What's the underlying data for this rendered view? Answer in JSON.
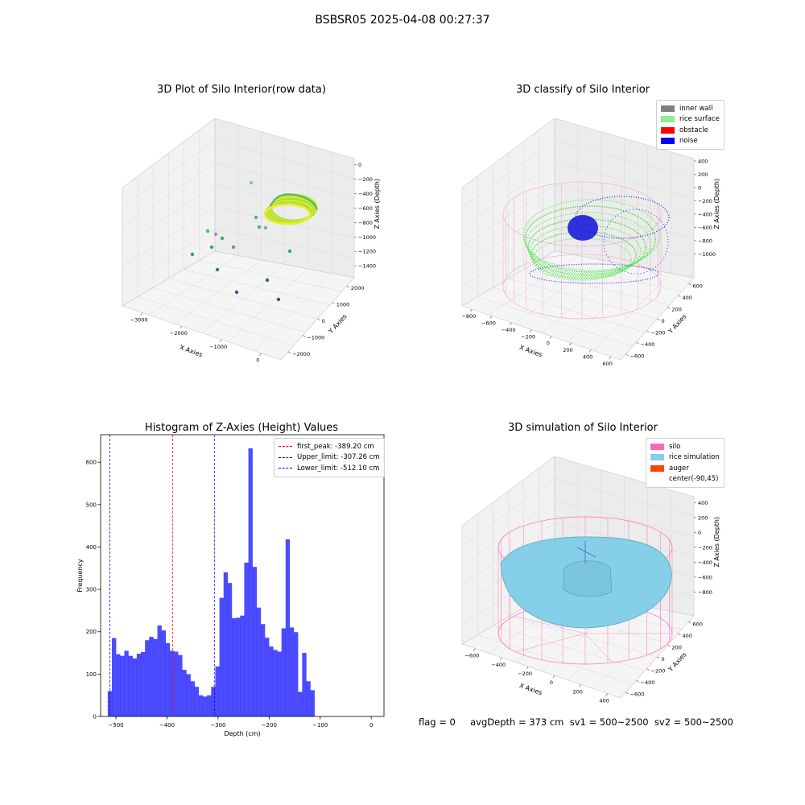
{
  "figure": {
    "suptitle": "BSBSR05 2025-04-08 00:27:37",
    "status_line": "flag = 0     avgDepth = 373 cm  sv1 = 500~2500  sv2 = 500~2500"
  },
  "panels": {
    "raw": {
      "title": "3D Plot of Silo Interior(row data)",
      "xlabel": "X Axies",
      "ylabel": "Y Axies",
      "zlabel": "Z Axies (Depth)",
      "xticks": [
        "−3000",
        "−2000",
        "−1000",
        "0"
      ],
      "yticks": [
        "−2000",
        "−1000",
        "0",
        "1000",
        "2000"
      ],
      "zticks": [
        "0",
        "−200",
        "−400",
        "−600",
        "−800",
        "−1000",
        "−1200",
        "−1400"
      ]
    },
    "classify": {
      "title": "3D classify of Silo Interior",
      "xlabel": "X Axies",
      "ylabel": "Y Axies",
      "zlabel": "Z Axies (Depth)",
      "xticks": [
        "−800",
        "−600",
        "−400",
        "−200",
        "0",
        "200",
        "400",
        "600"
      ],
      "yticks": [
        "−600",
        "−400",
        "−200",
        "0",
        "200",
        "400",
        "600"
      ],
      "zticks": [
        "400",
        "200",
        "0",
        "−200",
        "−400",
        "−600",
        "−800",
        "−1000"
      ],
      "legend": [
        {
          "label": "inner wall",
          "color": "#808080"
        },
        {
          "label": "rice surface",
          "color": "#90ee90"
        },
        {
          "label": "obstacle",
          "color": "#ff0000"
        },
        {
          "label": "noise",
          "color": "#0000ff"
        }
      ]
    },
    "simulation": {
      "title": "3D simulation of Silo Interior",
      "xlabel": "X Axies",
      "ylabel": "Y Axies",
      "zlabel": "Z Axies (Depth)",
      "xticks": [
        "−600",
        "−400",
        "−200",
        "0",
        "200",
        "400"
      ],
      "yticks": [
        "−600",
        "−400",
        "−200",
        "0",
        "200",
        "400",
        "600"
      ],
      "zticks": [
        "400",
        "200",
        "0",
        "−200",
        "−400",
        "−600",
        "−800"
      ],
      "legend": [
        {
          "label": "silo",
          "color": "#ff69b4"
        },
        {
          "label": "rice simulation",
          "color": "#87ceeb"
        },
        {
          "label": "auger",
          "color": "#ff4500"
        },
        {
          "label": "center(-90,45)",
          "color": ""
        }
      ]
    }
  },
  "chart_data": {
    "type": "bar",
    "title": "Histogram of Z-Axies (Height) Values",
    "xlabel": "Depth (cm)",
    "ylabel": "Frequency",
    "xlim": [
      -530,
      25
    ],
    "ylim": [
      0,
      665
    ],
    "bin_start": -516,
    "bin_width": 8.1,
    "color": "#0000ff",
    "values": [
      60,
      185,
      147,
      143,
      155,
      143,
      137,
      148,
      152,
      180,
      188,
      183,
      215,
      203,
      173,
      155,
      153,
      145,
      110,
      100,
      83,
      70,
      50,
      47,
      50,
      70,
      118,
      280,
      340,
      315,
      232,
      233,
      238,
      363,
      633,
      353,
      257,
      218,
      186,
      165,
      157,
      153,
      208,
      418,
      210,
      199,
      58,
      150,
      83,
      62
    ],
    "xticks": [
      -500,
      -400,
      -300,
      -200,
      -100,
      0
    ],
    "xtick_labels": [
      "−500",
      "−400",
      "−300",
      "−200",
      "−100",
      "0"
    ],
    "yticks": [
      0,
      100,
      200,
      300,
      400,
      500,
      600
    ],
    "ytick_labels": [
      "0",
      "100",
      "200",
      "300",
      "400",
      "500",
      "600"
    ],
    "vlines": [
      {
        "x": -389.2,
        "color": "#ff0000",
        "label": "first_peak: -389.20 cm"
      },
      {
        "x": -307.26,
        "color": "#0000ff",
        "label": "Upper_limit: -307.26 cm"
      },
      {
        "x": -512.1,
        "color": "#0000ff",
        "label": "Lower_limit: -512.10 cm"
      }
    ],
    "legend_position": "top-right",
    "grid": false
  }
}
